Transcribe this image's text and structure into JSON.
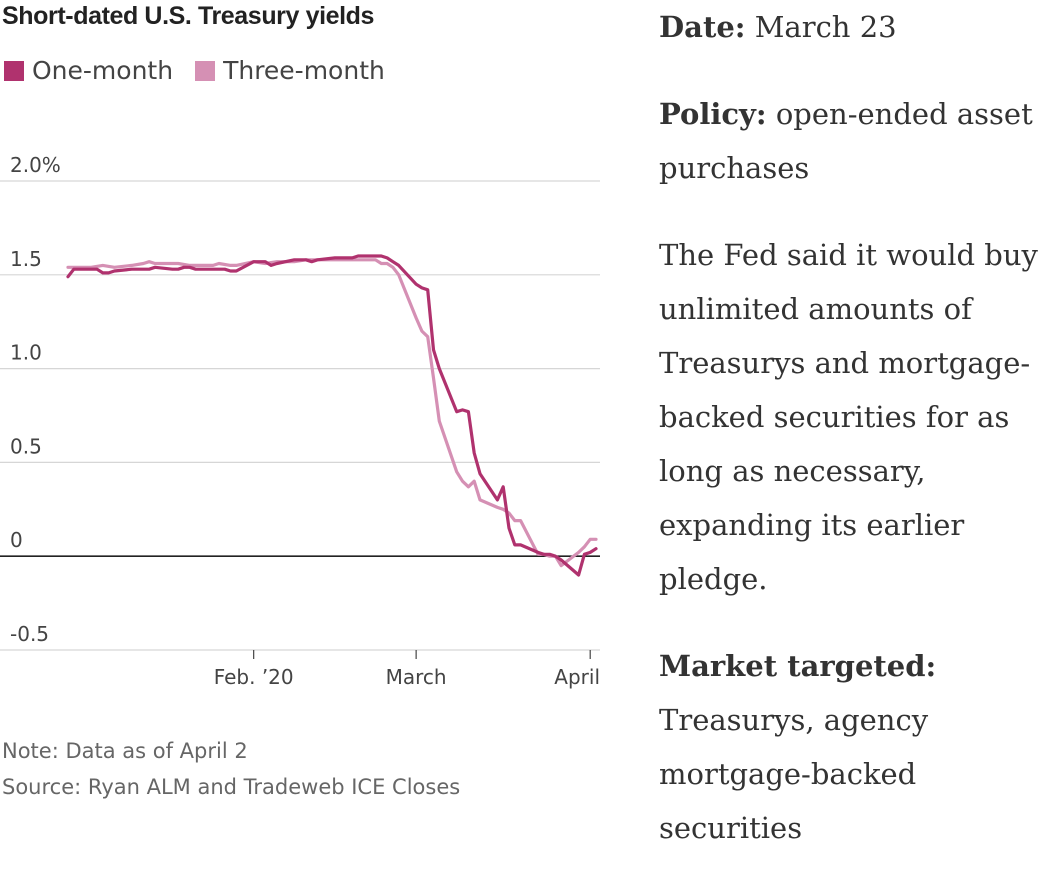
{
  "chart_data": {
    "type": "line",
    "title": "Short-dated U.S. Treasury yields",
    "xlabel": "",
    "ylabel": "",
    "ylim": [
      -0.5,
      2.0
    ],
    "yticks": [
      {
        "value": 2.0,
        "label": "2.0%"
      },
      {
        "value": 1.5,
        "label": "1.5"
      },
      {
        "value": 1.0,
        "label": "1.0"
      },
      {
        "value": 0.5,
        "label": "0.5"
      },
      {
        "value": 0,
        "label": "0"
      },
      {
        "value": -0.5,
        "label": "-0.5"
      }
    ],
    "xlim": [
      "2020-01-02",
      "2020-04-02"
    ],
    "xticks": [
      {
        "date": "2020-02-03",
        "label": "Feb. ’20"
      },
      {
        "date": "2020-03-02",
        "label": "March"
      },
      {
        "date": "2020-04-01",
        "label": "April"
      }
    ],
    "grid": true,
    "legend_position": "top-left",
    "series": [
      {
        "name": "One-month",
        "color": "#b0326e",
        "points": [
          [
            "2020-01-02",
            1.49
          ],
          [
            "2020-01-03",
            1.53
          ],
          [
            "2020-01-06",
            1.53
          ],
          [
            "2020-01-07",
            1.53
          ],
          [
            "2020-01-08",
            1.51
          ],
          [
            "2020-01-09",
            1.51
          ],
          [
            "2020-01-10",
            1.52
          ],
          [
            "2020-01-13",
            1.53
          ],
          [
            "2020-01-14",
            1.53
          ],
          [
            "2020-01-15",
            1.53
          ],
          [
            "2020-01-16",
            1.53
          ],
          [
            "2020-01-17",
            1.54
          ],
          [
            "2020-01-20",
            1.53
          ],
          [
            "2020-01-21",
            1.53
          ],
          [
            "2020-01-22",
            1.54
          ],
          [
            "2020-01-23",
            1.54
          ],
          [
            "2020-01-24",
            1.53
          ],
          [
            "2020-01-27",
            1.53
          ],
          [
            "2020-01-28",
            1.53
          ],
          [
            "2020-01-29",
            1.53
          ],
          [
            "2020-01-30",
            1.52
          ],
          [
            "2020-01-31",
            1.52
          ],
          [
            "2020-02-03",
            1.57
          ],
          [
            "2020-02-04",
            1.57
          ],
          [
            "2020-02-05",
            1.57
          ],
          [
            "2020-02-06",
            1.55
          ],
          [
            "2020-02-07",
            1.56
          ],
          [
            "2020-02-10",
            1.58
          ],
          [
            "2020-02-11",
            1.58
          ],
          [
            "2020-02-12",
            1.58
          ],
          [
            "2020-02-13",
            1.57
          ],
          [
            "2020-02-14",
            1.58
          ],
          [
            "2020-02-17",
            1.59
          ],
          [
            "2020-02-18",
            1.59
          ],
          [
            "2020-02-19",
            1.59
          ],
          [
            "2020-02-20",
            1.59
          ],
          [
            "2020-02-21",
            1.6
          ],
          [
            "2020-02-24",
            1.6
          ],
          [
            "2020-02-25",
            1.6
          ],
          [
            "2020-02-26",
            1.59
          ],
          [
            "2020-02-27",
            1.57
          ],
          [
            "2020-02-28",
            1.55
          ],
          [
            "2020-03-02",
            1.45
          ],
          [
            "2020-03-03",
            1.43
          ],
          [
            "2020-03-04",
            1.42
          ],
          [
            "2020-03-05",
            1.1
          ],
          [
            "2020-03-06",
            1.0
          ],
          [
            "2020-03-09",
            0.77
          ],
          [
            "2020-03-10",
            0.78
          ],
          [
            "2020-03-11",
            0.77
          ],
          [
            "2020-03-12",
            0.55
          ],
          [
            "2020-03-13",
            0.44
          ],
          [
            "2020-03-16",
            0.3
          ],
          [
            "2020-03-17",
            0.37
          ],
          [
            "2020-03-18",
            0.15
          ],
          [
            "2020-03-19",
            0.06
          ],
          [
            "2020-03-20",
            0.06
          ],
          [
            "2020-03-23",
            0.02
          ],
          [
            "2020-03-24",
            0.01
          ],
          [
            "2020-03-25",
            0.01
          ],
          [
            "2020-03-26",
            0.0
          ],
          [
            "2020-03-27",
            -0.02
          ],
          [
            "2020-03-30",
            -0.1
          ],
          [
            "2020-03-31",
            0.01
          ],
          [
            "2020-04-01",
            0.02
          ],
          [
            "2020-04-02",
            0.04
          ]
        ]
      },
      {
        "name": "Three-month",
        "color": "#d590b4",
        "points": [
          [
            "2020-01-02",
            1.54
          ],
          [
            "2020-01-06",
            1.54
          ],
          [
            "2020-01-08",
            1.55
          ],
          [
            "2020-01-10",
            1.54
          ],
          [
            "2020-01-13",
            1.55
          ],
          [
            "2020-01-15",
            1.56
          ],
          [
            "2020-01-16",
            1.57
          ],
          [
            "2020-01-17",
            1.56
          ],
          [
            "2020-01-21",
            1.56
          ],
          [
            "2020-01-23",
            1.55
          ],
          [
            "2020-01-27",
            1.55
          ],
          [
            "2020-01-28",
            1.56
          ],
          [
            "2020-01-30",
            1.55
          ],
          [
            "2020-01-31",
            1.55
          ],
          [
            "2020-02-03",
            1.57
          ],
          [
            "2020-02-05",
            1.56
          ],
          [
            "2020-02-07",
            1.57
          ],
          [
            "2020-02-10",
            1.57
          ],
          [
            "2020-02-12",
            1.58
          ],
          [
            "2020-02-14",
            1.58
          ],
          [
            "2020-02-18",
            1.58
          ],
          [
            "2020-02-20",
            1.58
          ],
          [
            "2020-02-21",
            1.58
          ],
          [
            "2020-02-24",
            1.58
          ],
          [
            "2020-02-25",
            1.56
          ],
          [
            "2020-02-26",
            1.56
          ],
          [
            "2020-02-27",
            1.54
          ],
          [
            "2020-02-28",
            1.5
          ],
          [
            "2020-03-02",
            1.27
          ],
          [
            "2020-03-03",
            1.2
          ],
          [
            "2020-03-04",
            1.17
          ],
          [
            "2020-03-05",
            0.95
          ],
          [
            "2020-03-06",
            0.72
          ],
          [
            "2020-03-09",
            0.45
          ],
          [
            "2020-03-10",
            0.4
          ],
          [
            "2020-03-11",
            0.37
          ],
          [
            "2020-03-12",
            0.4
          ],
          [
            "2020-03-13",
            0.3
          ],
          [
            "2020-03-16",
            0.26
          ],
          [
            "2020-03-17",
            0.25
          ],
          [
            "2020-03-18",
            0.23
          ],
          [
            "2020-03-19",
            0.19
          ],
          [
            "2020-03-20",
            0.19
          ],
          [
            "2020-03-23",
            0.01
          ],
          [
            "2020-03-24",
            0.01
          ],
          [
            "2020-03-25",
            0.0
          ],
          [
            "2020-03-26",
            0.0
          ],
          [
            "2020-03-27",
            -0.05
          ],
          [
            "2020-03-30",
            0.02
          ],
          [
            "2020-03-31",
            0.05
          ],
          [
            "2020-04-01",
            0.09
          ],
          [
            "2020-04-02",
            0.09
          ]
        ]
      }
    ]
  },
  "notes": {
    "note": "Note: Data as of April 2",
    "source": "Source: Ryan ALM and Tradeweb ICE Closes"
  },
  "sidebar": {
    "date_label": "Date:",
    "date_value": "March 23",
    "policy_label": "Policy:",
    "policy_value": "open-ended asset purchases",
    "description": "The Fed said it would buy unlimited amounts of Treasurys and mortgage-backed securities for as long as necessary, expanding its earlier pledge.",
    "market_label": "Market targeted:",
    "market_value": "Treasurys, agency mortgage-backed securities"
  }
}
